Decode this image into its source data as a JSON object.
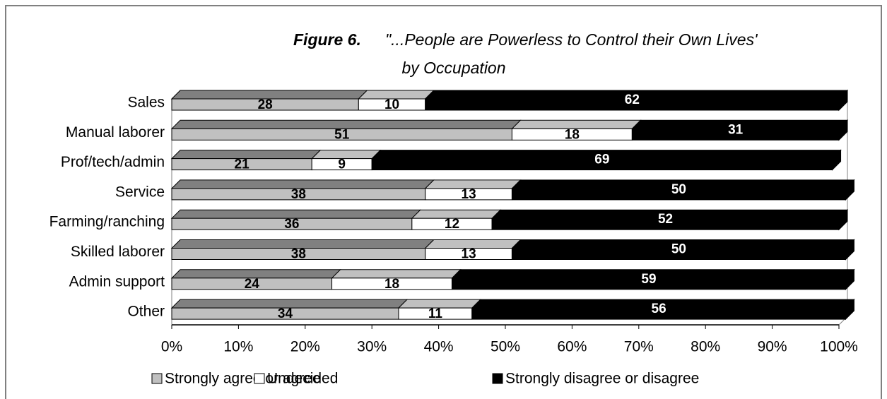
{
  "chart_data": {
    "type": "bar",
    "orientation": "horizontal",
    "stacked": true,
    "three_d": true,
    "figure_label": "Figure 6.",
    "title": "\"...People are Powerless to Control their Own Lives'",
    "subtitle": "by Occupation",
    "categories": [
      "Sales",
      "Manual laborer",
      "Prof/tech/admin",
      "Service",
      "Farming/ranching",
      "Skilled laborer",
      "Admin support",
      "Other"
    ],
    "series": [
      {
        "name": "Strongly agree or agree",
        "color": "#c0c0c0",
        "top_color": "#808080",
        "label_color": "#000000",
        "values": [
          28,
          51,
          21,
          38,
          36,
          38,
          24,
          34
        ]
      },
      {
        "name": "Undecided",
        "color": "#ffffff",
        "top_color": "#c0c0c0",
        "label_color": "#000000",
        "values": [
          10,
          18,
          9,
          13,
          12,
          13,
          18,
          11
        ]
      },
      {
        "name": "Strongly disagree or disagree",
        "color": "#000000",
        "top_color": "#000000",
        "label_color": "#ffffff",
        "values": [
          62,
          31,
          69,
          50,
          52,
          50,
          59,
          56
        ]
      }
    ],
    "xlim": [
      0,
      100
    ],
    "xticks": [
      {
        "value": 0,
        "label": "0%"
      },
      {
        "value": 10,
        "label": "10%"
      },
      {
        "value": 20,
        "label": "20%"
      },
      {
        "value": 30,
        "label": "30%"
      },
      {
        "value": 40,
        "label": "40%"
      },
      {
        "value": 50,
        "label": "50%"
      },
      {
        "value": 60,
        "label": "60%"
      },
      {
        "value": 70,
        "label": "70%"
      },
      {
        "value": 80,
        "label": "80%"
      },
      {
        "value": 90,
        "label": "90%"
      },
      {
        "value": 100,
        "label": "100%"
      }
    ],
    "legend": "bottom"
  }
}
